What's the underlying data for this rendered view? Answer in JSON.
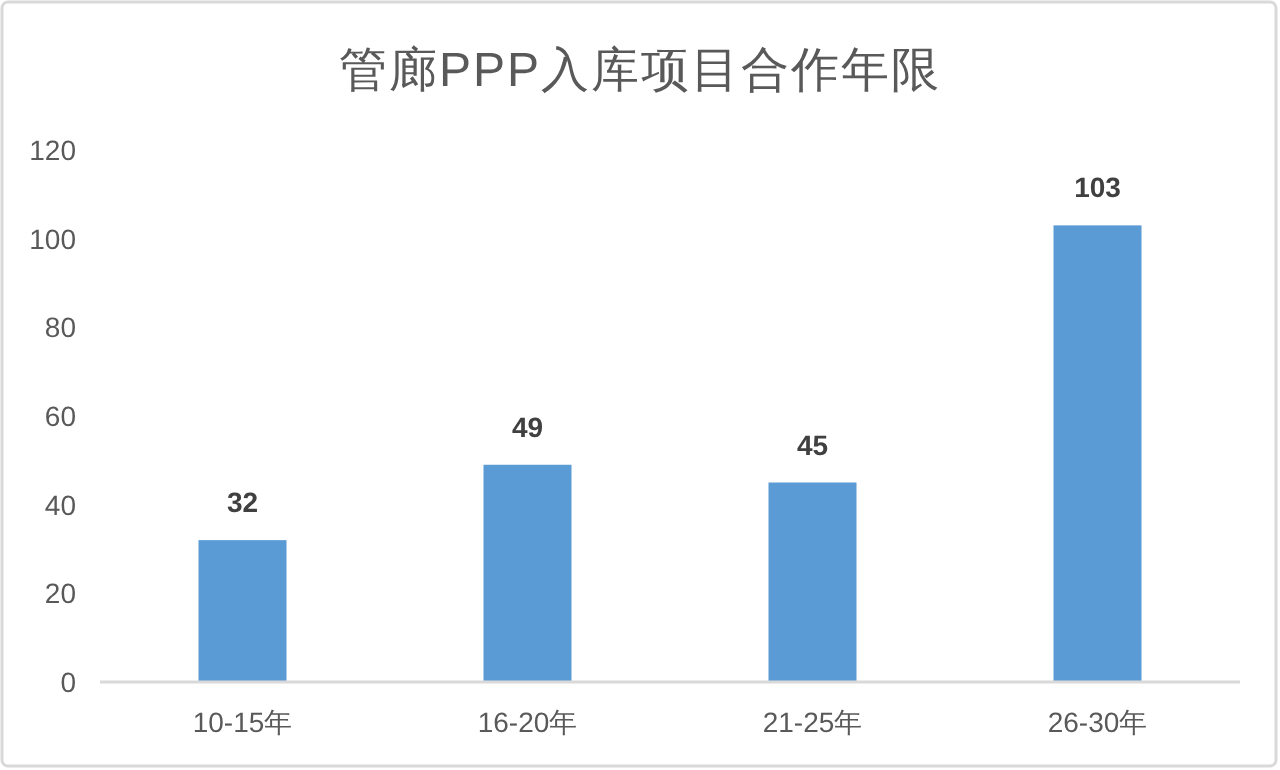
{
  "chart_data": {
    "type": "bar",
    "title": "管廊PPP入库项目合作年限",
    "categories": [
      "10-15年",
      "16-20年",
      "21-25年",
      "26-30年"
    ],
    "values": [
      32,
      49,
      45,
      103
    ],
    "color": "#5b9bd5",
    "ylim": [
      0,
      120
    ],
    "yticks": [
      0,
      20,
      40,
      60,
      80,
      100,
      120
    ],
    "grid": false,
    "data_labels": true
  }
}
